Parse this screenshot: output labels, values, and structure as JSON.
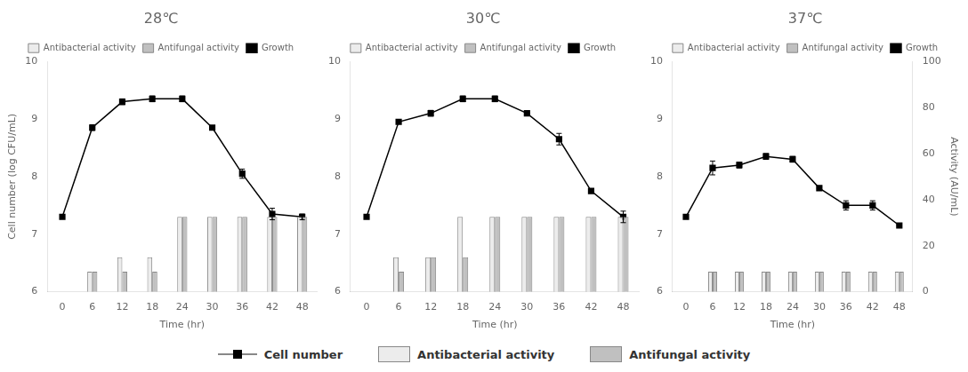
{
  "chart_data": [
    {
      "type": "bar",
      "title": "28℃",
      "x": [
        0,
        6,
        12,
        18,
        24,
        30,
        36,
        42,
        48
      ],
      "xlim": [
        -3,
        51
      ],
      "xticks": [
        0,
        6,
        12,
        18,
        24,
        30,
        36,
        42,
        48
      ],
      "xlabel": "Time (hr)",
      "ylabel": "Cell number (log CFU/mL)",
      "ylim": [
        6,
        10
      ],
      "yticks": [
        6,
        7,
        8,
        9,
        10
      ],
      "grid": false,
      "legend": "top",
      "series": [
        {
          "name": "Antibacterial activity",
          "type": "bar",
          "color": "#ececec",
          "values": [
            null,
            6.35,
            6.6,
            6.6,
            7.3,
            7.3,
            7.3,
            7.3,
            7.3
          ]
        },
        {
          "name": "Antifungal activity",
          "type": "bar",
          "color": "#c0c0c0",
          "values": [
            null,
            6.35,
            6.35,
            6.35,
            7.3,
            7.3,
            7.3,
            7.3,
            7.3
          ]
        },
        {
          "name": "Growth",
          "type": "line",
          "color": "#000000",
          "marker": "square",
          "values": [
            7.3,
            8.85,
            9.3,
            9.35,
            9.35,
            8.85,
            8.05,
            7.35,
            7.3
          ],
          "errors": [
            0.0,
            0.05,
            0.05,
            0.05,
            0.05,
            0.0,
            0.08,
            0.1,
            0.05
          ]
        }
      ]
    },
    {
      "type": "bar",
      "title": "30℃",
      "x": [
        0,
        6,
        12,
        18,
        24,
        30,
        36,
        42,
        48
      ],
      "xlim": [
        -3,
        51
      ],
      "xticks": [
        0,
        6,
        12,
        18,
        24,
        30,
        36,
        42,
        48
      ],
      "xlabel": "Time (hr)",
      "ylim": [
        6,
        10
      ],
      "yticks": [
        6,
        7,
        8,
        9,
        10
      ],
      "grid": false,
      "legend": "top",
      "series": [
        {
          "name": "Antibacterial activity",
          "type": "bar",
          "color": "#ececec",
          "values": [
            null,
            6.6,
            6.6,
            7.3,
            7.3,
            7.3,
            7.3,
            7.3,
            7.3
          ]
        },
        {
          "name": "Antifungal activity",
          "type": "bar",
          "color": "#c0c0c0",
          "values": [
            null,
            6.35,
            6.6,
            6.6,
            7.3,
            7.3,
            7.3,
            7.3,
            7.3
          ]
        },
        {
          "name": "Growth",
          "type": "line",
          "color": "#000000",
          "marker": "square",
          "values": [
            7.3,
            8.95,
            9.1,
            9.35,
            9.35,
            9.1,
            8.65,
            7.75,
            7.3
          ],
          "errors": [
            0.0,
            0.0,
            0.05,
            0.05,
            0.05,
            0.0,
            0.1,
            0.0,
            0.1
          ]
        }
      ],
      "annotations": [
        {
          "text": "Cell number",
          "color": "#000000",
          "marker": "square"
        },
        {
          "text": "Antibacterial activity",
          "color": "#ececec",
          "marker": "box"
        },
        {
          "text": "Antifungal activity",
          "color": "#c0c0c0",
          "marker": "box"
        }
      ]
    },
    {
      "type": "bar",
      "title": "37℃",
      "x": [
        0,
        6,
        12,
        18,
        24,
        30,
        36,
        42,
        48
      ],
      "xlim": [
        -3,
        51
      ],
      "xticks": [
        0,
        6,
        12,
        18,
        24,
        30,
        36,
        42,
        48
      ],
      "xlabel": "Time (hr)",
      "y2label": "Activity (AU/mL)",
      "ylim": [
        6,
        10
      ],
      "yticks": [
        6,
        7,
        8,
        9,
        10
      ],
      "y2lim": [
        0,
        100
      ],
      "y2ticks": [
        0,
        20,
        40,
        60,
        80,
        100
      ],
      "grid": false,
      "legend": "top",
      "series": [
        {
          "name": "Antibacterial activity",
          "type": "bar",
          "color": "#ececec",
          "values": [
            null,
            6.35,
            6.35,
            6.35,
            6.35,
            6.35,
            6.35,
            6.35,
            6.35
          ]
        },
        {
          "name": "Antifungal activity",
          "type": "bar",
          "color": "#c0c0c0",
          "values": [
            null,
            6.35,
            6.35,
            6.35,
            6.35,
            6.35,
            6.35,
            6.35,
            6.35
          ]
        },
        {
          "name": "Growth",
          "type": "line",
          "color": "#000000",
          "marker": "square",
          "values": [
            7.3,
            8.15,
            8.2,
            8.35,
            8.3,
            7.8,
            7.5,
            7.5,
            7.15
          ],
          "errors": [
            0.0,
            0.12,
            0.05,
            0.05,
            0.05,
            0.0,
            0.08,
            0.08,
            0.0
          ]
        }
      ]
    }
  ]
}
